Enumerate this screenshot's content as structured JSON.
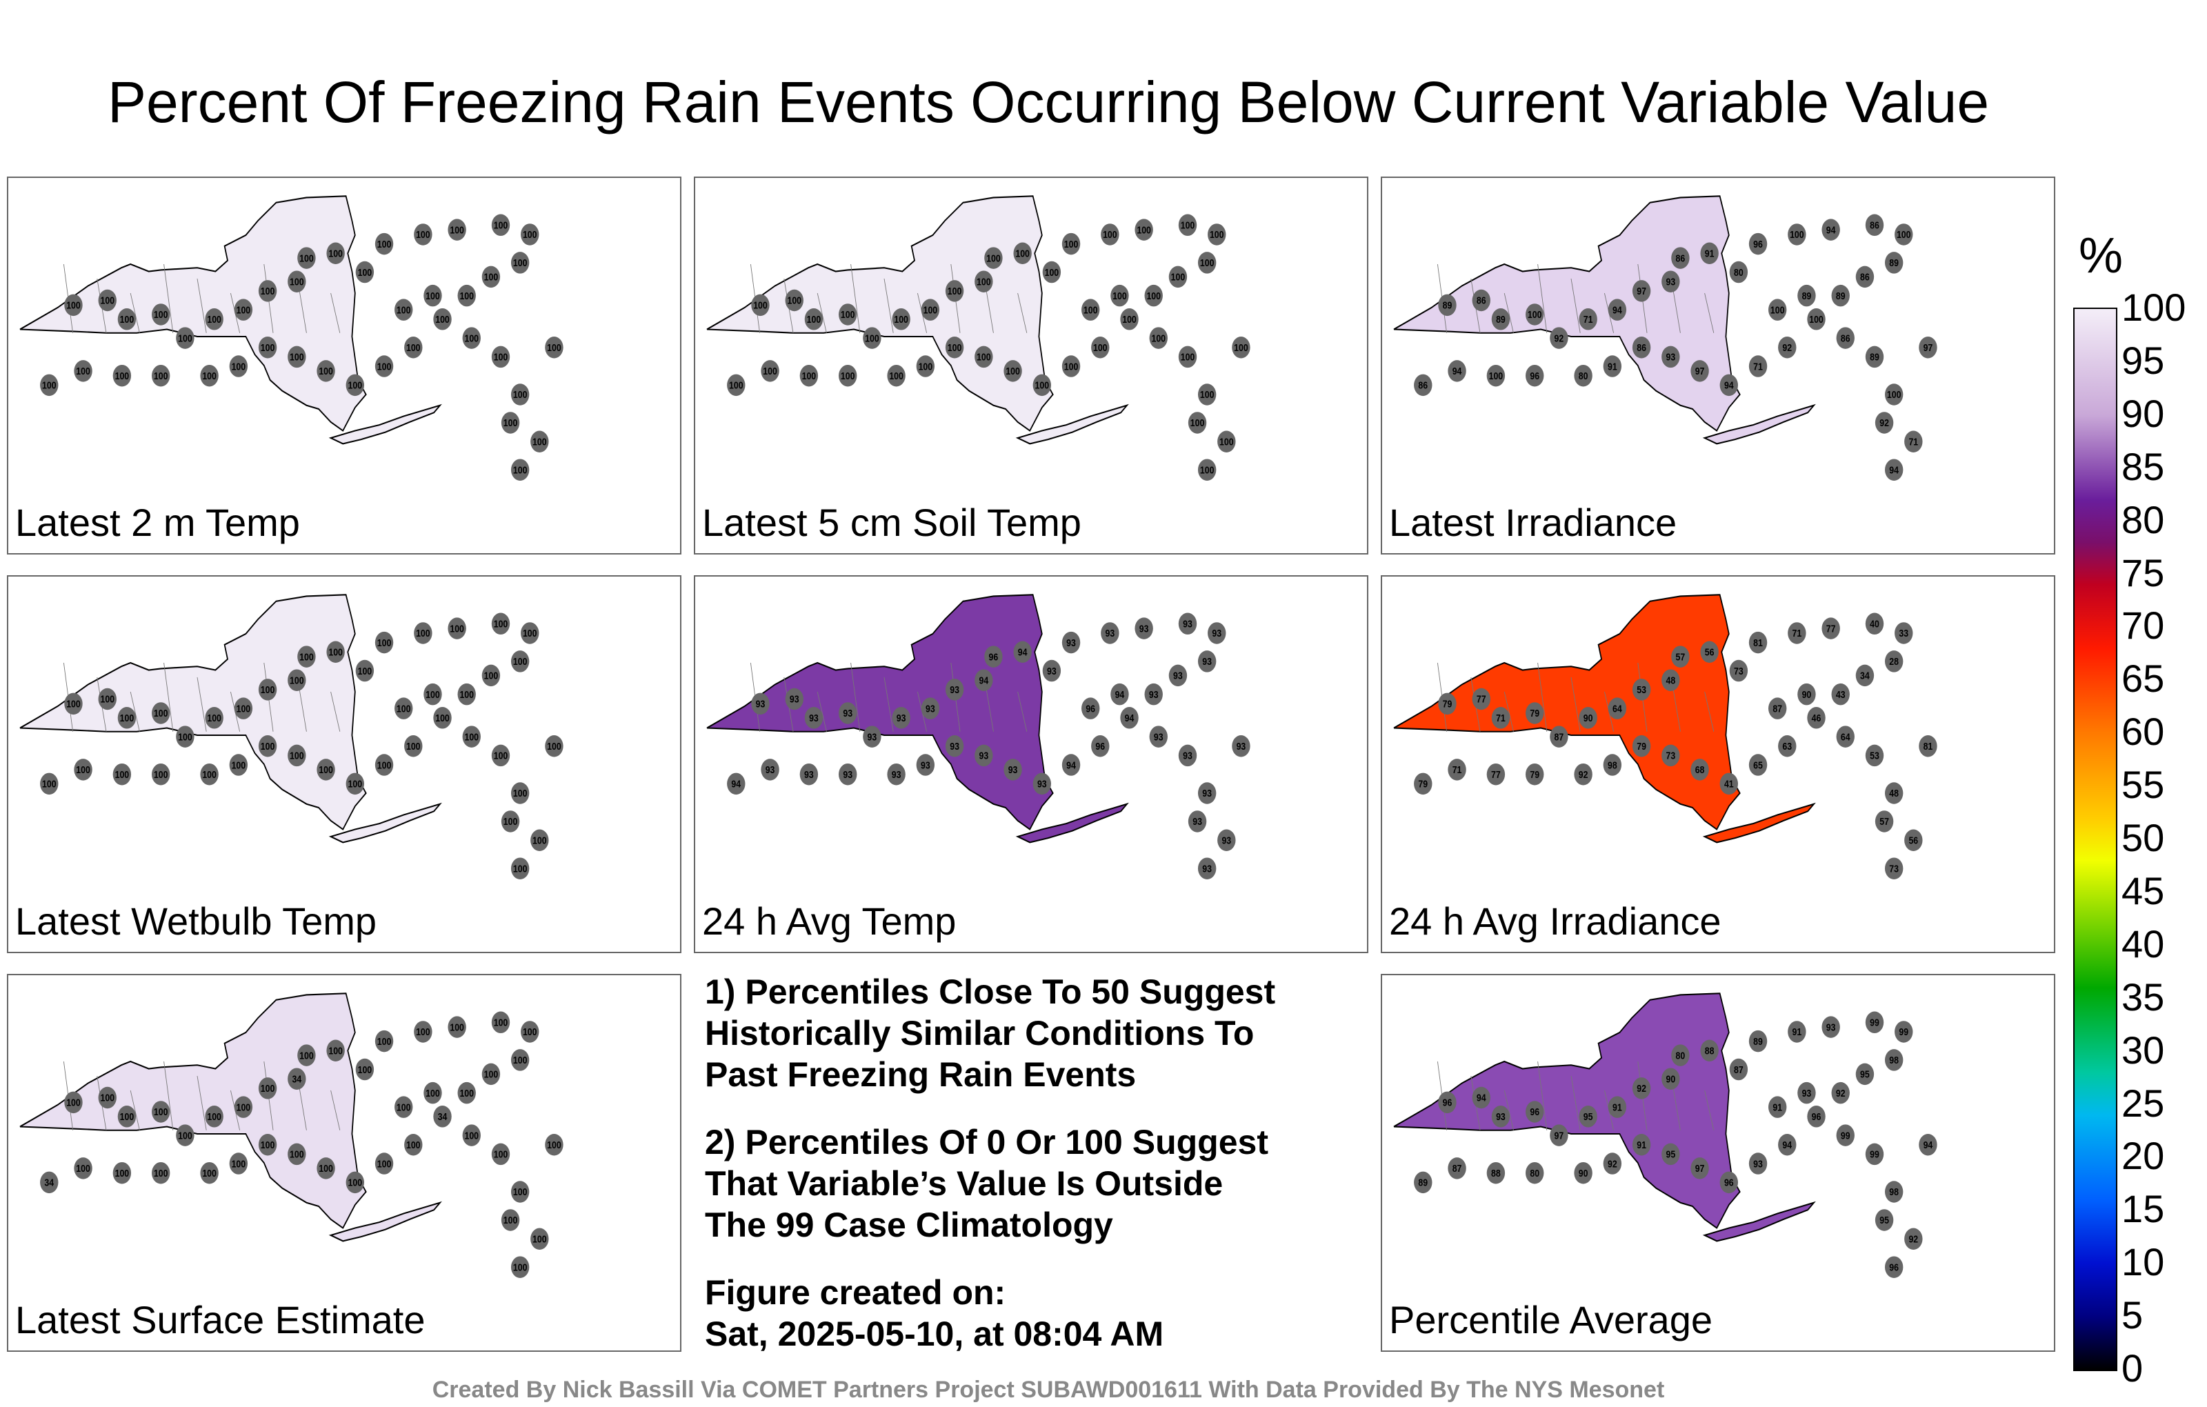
{
  "title": "Percent Of Freezing Rain Events Occurring Below Current Variable Value",
  "panels": [
    {
      "label": "Latest 2 m Temp",
      "fill": "#f0ebf5",
      "values": [
        100,
        100,
        100,
        100,
        100,
        100,
        100,
        100,
        100,
        100,
        100,
        100
      ]
    },
    {
      "label": "Latest 5 cm Soil Temp",
      "fill": "#f0ebf5",
      "values": [
        100,
        100,
        100,
        100,
        100,
        100,
        100,
        100,
        100,
        100,
        100,
        100
      ]
    },
    {
      "label": "Latest Irradiance",
      "fill": "#e3d3ee",
      "values": [
        89,
        86,
        89,
        100,
        92,
        71,
        94,
        97,
        93,
        86,
        91,
        80,
        96,
        100,
        94,
        86,
        100
      ]
    },
    {
      "label": "Latest Wetbulb Temp",
      "fill": "#f0ebf5",
      "values": [
        100,
        100,
        100,
        100,
        100,
        100,
        100,
        100,
        100,
        100,
        100,
        100
      ]
    },
    {
      "label": "24 h Avg Temp",
      "fill": "#7c3aa5",
      "values": [
        93,
        93,
        93,
        93,
        93,
        93,
        93,
        93,
        94,
        96,
        94,
        93
      ]
    },
    {
      "label": "24 h Avg Irradiance",
      "fill": "#ff3b00",
      "values": [
        79,
        77,
        71,
        79,
        87,
        90,
        64,
        53,
        48,
        57,
        56,
        73,
        81,
        71,
        77,
        40,
        33,
        28,
        34,
        43,
        46,
        63,
        65,
        41,
        68,
        73,
        79,
        98,
        92
      ]
    },
    {
      "label": "Latest Surface Estimate",
      "fill": "#e9dff1",
      "values": [
        100,
        100,
        100,
        100,
        100,
        100,
        100,
        100,
        34,
        100,
        100,
        100
      ]
    },
    {
      "label": "Percentile Average",
      "fill": "#8a4bb3",
      "values": [
        96,
        94,
        93,
        96,
        97,
        95,
        91,
        92,
        90,
        80,
        88,
        87,
        89,
        91,
        93,
        99,
        99,
        98,
        95,
        92
      ]
    }
  ],
  "notes": [
    "1) Percentiles Close To 50 Suggest\nHistorically Similar Conditions To\nPast Freezing Rain Events",
    "2) Percentiles Of 0 Or 100 Suggest\nThat Variable’s Value Is Outside\nThe 99 Case Climatology"
  ],
  "created": "Figure created on:\nSat, 2025-05-10, at 08:04 AM",
  "footer": "Created By Nick Bassill Via COMET Partners Project SUBAWD001611 With Data Provided By The NYS Mesonet",
  "legend": {
    "unit": "%",
    "ticks": [
      "100",
      "95",
      "90",
      "85",
      "80",
      "75",
      "70",
      "65",
      "60",
      "55",
      "50",
      "45",
      "40",
      "35",
      "30",
      "25",
      "20",
      "15",
      "10",
      "5",
      "0"
    ]
  }
}
